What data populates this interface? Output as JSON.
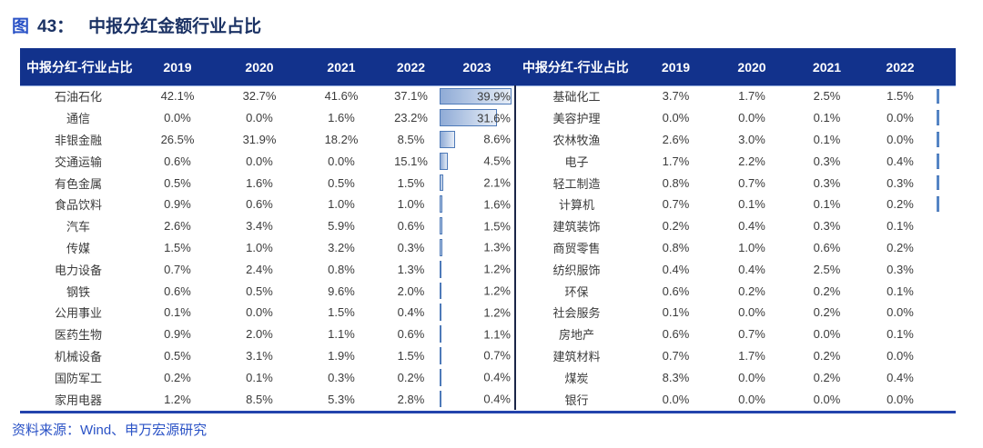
{
  "title": {
    "prefix": "图",
    "number": "43：",
    "text": "中报分红金额行业占比"
  },
  "source": "资料来源：Wind、申万宏源研究",
  "colors": {
    "header_bg": "#12328C",
    "title_navy": "#1B3264",
    "accent_blue": "#2A52C6",
    "bar_border": "#4E7AB8",
    "bar_fill_start": "#8FABD6",
    "bar_fill_end": "#E6EDF7",
    "divider": "#1A2547",
    "bottom_rule": "#2343AC",
    "body_text": "#3B3B3B"
  },
  "tables": [
    {
      "id": "left",
      "header": [
        "中报分红-行业占比",
        "2019",
        "2020",
        "2021",
        "2022",
        "2023"
      ],
      "bar_max": 39.9,
      "rows": [
        {
          "name": "石油石化",
          "values": [
            "42.1%",
            "32.7%",
            "41.6%",
            "37.1%",
            "39.9%"
          ],
          "bar": 39.9
        },
        {
          "name": "通信",
          "values": [
            "0.0%",
            "0.0%",
            "1.6%",
            "23.2%",
            "31.6%"
          ],
          "bar": 31.6
        },
        {
          "name": "非银金融",
          "values": [
            "26.5%",
            "31.9%",
            "18.2%",
            "8.5%",
            "8.6%"
          ],
          "bar": 8.6
        },
        {
          "name": "交通运输",
          "values": [
            "0.6%",
            "0.0%",
            "0.0%",
            "15.1%",
            "4.5%"
          ],
          "bar": 4.5
        },
        {
          "name": "有色金属",
          "values": [
            "0.5%",
            "1.6%",
            "0.5%",
            "1.5%",
            "2.1%"
          ],
          "bar": 2.1
        },
        {
          "name": "食品饮料",
          "values": [
            "0.9%",
            "0.6%",
            "1.0%",
            "1.0%",
            "1.6%"
          ],
          "bar": 1.6
        },
        {
          "name": "汽车",
          "values": [
            "2.6%",
            "3.4%",
            "5.9%",
            "0.6%",
            "1.5%"
          ],
          "bar": 1.5
        },
        {
          "name": "传媒",
          "values": [
            "1.5%",
            "1.0%",
            "3.2%",
            "0.3%",
            "1.3%"
          ],
          "bar": 1.3
        },
        {
          "name": "电力设备",
          "values": [
            "0.7%",
            "2.4%",
            "0.8%",
            "1.3%",
            "1.2%"
          ],
          "bar": 1.2
        },
        {
          "name": "钢铁",
          "values": [
            "0.6%",
            "0.5%",
            "9.6%",
            "2.0%",
            "1.2%"
          ],
          "bar": 1.2
        },
        {
          "name": "公用事业",
          "values": [
            "0.1%",
            "0.0%",
            "1.5%",
            "0.4%",
            "1.2%"
          ],
          "bar": 1.2
        },
        {
          "name": "医药生物",
          "values": [
            "0.9%",
            "2.0%",
            "1.1%",
            "0.6%",
            "1.1%"
          ],
          "bar": 1.1
        },
        {
          "name": "机械设备",
          "values": [
            "0.5%",
            "3.1%",
            "1.9%",
            "1.5%",
            "0.7%"
          ],
          "bar": 0.7
        },
        {
          "name": "国防军工",
          "values": [
            "0.2%",
            "0.1%",
            "0.3%",
            "0.2%",
            "0.4%"
          ],
          "bar": 0.4
        },
        {
          "name": "家用电器",
          "values": [
            "1.2%",
            "8.5%",
            "5.3%",
            "2.8%",
            "0.4%"
          ],
          "bar": 0.4
        }
      ]
    },
    {
      "id": "right",
      "header": [
        "中报分红-行业占比",
        "2019",
        "2020",
        "2021",
        "2022"
      ],
      "rows": [
        {
          "name": "基础化工",
          "values": [
            "3.7%",
            "1.7%",
            "2.5%",
            "1.5%"
          ],
          "edge_tick": true
        },
        {
          "name": "美容护理",
          "values": [
            "0.0%",
            "0.0%",
            "0.1%",
            "0.0%"
          ],
          "edge_tick": true
        },
        {
          "name": "农林牧渔",
          "values": [
            "2.6%",
            "3.0%",
            "0.1%",
            "0.0%"
          ],
          "edge_tick": true
        },
        {
          "name": "电子",
          "values": [
            "1.7%",
            "2.2%",
            "0.3%",
            "0.4%"
          ],
          "edge_tick": true
        },
        {
          "name": "轻工制造",
          "values": [
            "0.8%",
            "0.7%",
            "0.3%",
            "0.3%"
          ],
          "edge_tick": true
        },
        {
          "name": "计算机",
          "values": [
            "0.7%",
            "0.1%",
            "0.1%",
            "0.2%"
          ],
          "edge_tick": true
        },
        {
          "name": "建筑装饰",
          "values": [
            "0.2%",
            "0.4%",
            "0.3%",
            "0.1%"
          ],
          "edge_tick": false
        },
        {
          "name": "商贸零售",
          "values": [
            "0.8%",
            "1.0%",
            "0.6%",
            "0.2%"
          ],
          "edge_tick": false
        },
        {
          "name": "纺织服饰",
          "values": [
            "0.4%",
            "0.4%",
            "2.5%",
            "0.3%"
          ],
          "edge_tick": false
        },
        {
          "name": "环保",
          "values": [
            "0.6%",
            "0.2%",
            "0.2%",
            "0.1%"
          ],
          "edge_tick": false
        },
        {
          "name": "社会服务",
          "values": [
            "0.1%",
            "0.0%",
            "0.2%",
            "0.0%"
          ],
          "edge_tick": false
        },
        {
          "name": "房地产",
          "values": [
            "0.6%",
            "0.7%",
            "0.0%",
            "0.1%"
          ],
          "edge_tick": false
        },
        {
          "name": "建筑材料",
          "values": [
            "0.7%",
            "1.7%",
            "0.2%",
            "0.0%"
          ],
          "edge_tick": false
        },
        {
          "name": "煤炭",
          "values": [
            "8.3%",
            "0.0%",
            "0.2%",
            "0.4%"
          ],
          "edge_tick": false
        },
        {
          "name": "银行",
          "values": [
            "0.0%",
            "0.0%",
            "0.0%",
            "0.0%"
          ],
          "edge_tick": false
        }
      ]
    }
  ]
}
